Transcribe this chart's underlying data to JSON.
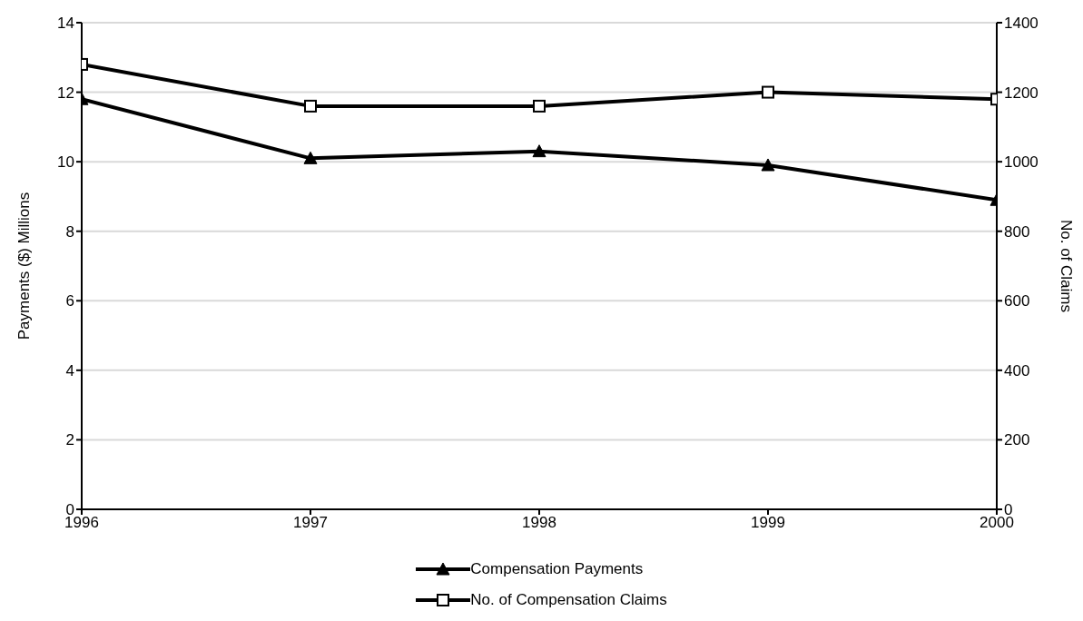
{
  "chart_data": {
    "type": "line",
    "x": [
      1996,
      1997,
      1998,
      1999,
      2000
    ],
    "xlim": [
      1996,
      2000
    ],
    "xticks": [
      1996,
      1997,
      1998,
      1999,
      2000
    ],
    "ylabel": "Payments ($) Millions",
    "y2label": "No. of Claims",
    "ylim": [
      0,
      14
    ],
    "yticks": [
      0,
      2,
      4,
      6,
      8,
      10,
      12,
      14
    ],
    "y2lim": [
      0,
      1400
    ],
    "y2ticks": [
      0,
      200,
      400,
      600,
      800,
      1000,
      1200,
      1400
    ],
    "grid": "y",
    "legend": "bottom",
    "line_style": "solid",
    "series": [
      {
        "name": "Compensation Payments",
        "color": "#000000",
        "marker": "triangle",
        "values": [
          11.8,
          10.1,
          10.3,
          9.9,
          8.9
        ]
      },
      {
        "name": "No. of Compensation Claims",
        "color": "#000000",
        "marker": "square",
        "axis": "y2",
        "values": [
          1280,
          1160,
          1160,
          1200,
          1180
        ]
      }
    ]
  }
}
